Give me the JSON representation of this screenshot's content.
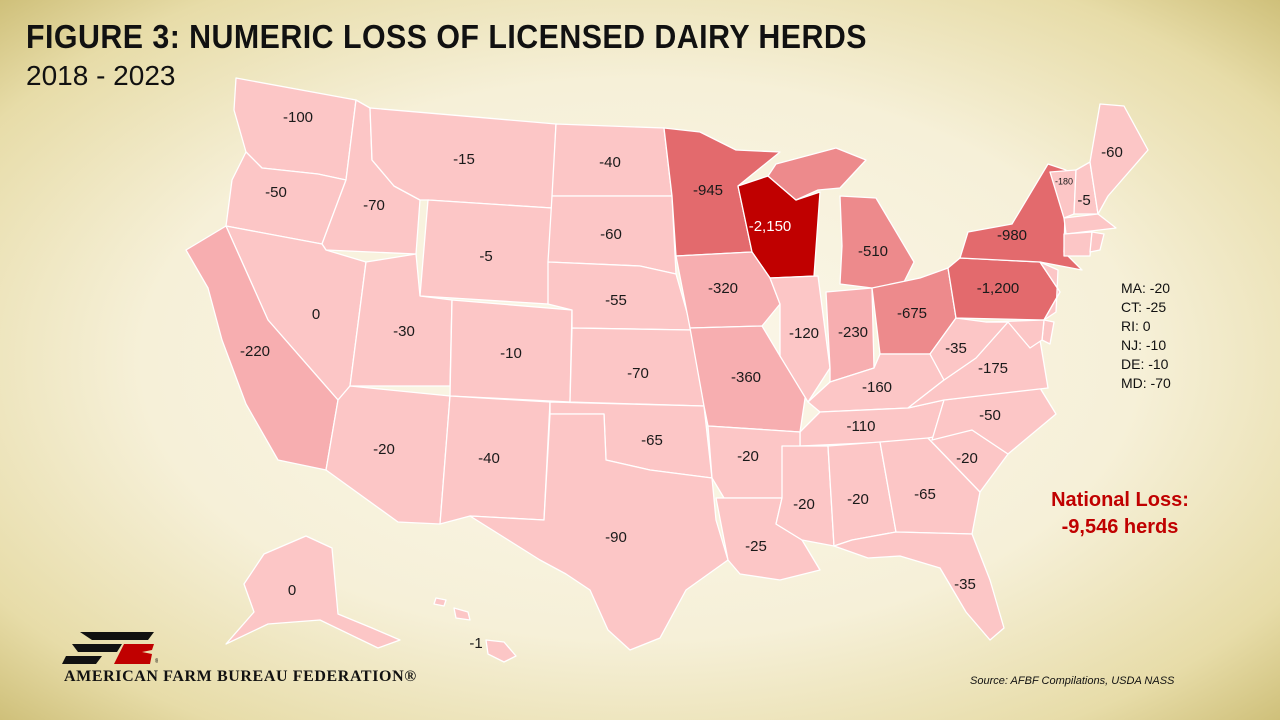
{
  "title": "FIGURE 3: NUMERIC LOSS OF LICENSED DAIRY HERDS",
  "subtitle": "2018 - 2023",
  "colors": {
    "lightest": "#fcc6c6",
    "light": "#f7aeb0",
    "medium": "#ed8a8c",
    "strong": "#e36a6d",
    "darkest": "#c00000",
    "border": "#ffffff",
    "national_text": "#c00000"
  },
  "states": [
    {
      "state": "WA",
      "label": "-100",
      "value": -100
    },
    {
      "state": "OR",
      "label": "-50",
      "value": -50
    },
    {
      "state": "ID",
      "label": "-70",
      "value": -70
    },
    {
      "state": "MT",
      "label": "-15",
      "value": -15
    },
    {
      "state": "ND",
      "label": "-40",
      "value": -40
    },
    {
      "state": "WY",
      "label": "-5",
      "value": -5
    },
    {
      "state": "SD",
      "label": "-60",
      "value": -60
    },
    {
      "state": "NE",
      "label": "-55",
      "value": -55
    },
    {
      "state": "NV",
      "label": "0",
      "value": 0
    },
    {
      "state": "CA",
      "label": "-220",
      "value": -220
    },
    {
      "state": "UT",
      "label": "-30",
      "value": -30
    },
    {
      "state": "CO",
      "label": "-10",
      "value": -10
    },
    {
      "state": "KS",
      "label": "-70",
      "value": -70
    },
    {
      "state": "AZ",
      "label": "-20",
      "value": -20
    },
    {
      "state": "NM",
      "label": "-40",
      "value": -40
    },
    {
      "state": "OK",
      "label": "-65",
      "value": -65
    },
    {
      "state": "TX",
      "label": "-90",
      "value": -90
    },
    {
      "state": "MN",
      "label": "-945",
      "value": -945
    },
    {
      "state": "WI",
      "label": "-2,150",
      "value": -2150
    },
    {
      "state": "IA",
      "label": "-320",
      "value": -320
    },
    {
      "state": "MO",
      "label": "-360",
      "value": -360
    },
    {
      "state": "AR",
      "label": "-20",
      "value": -20
    },
    {
      "state": "LA",
      "label": "-25",
      "value": -25
    },
    {
      "state": "IL",
      "label": "-120",
      "value": -120
    },
    {
      "state": "IN",
      "label": "-230",
      "value": -230
    },
    {
      "state": "MI",
      "label": "-510",
      "value": -510
    },
    {
      "state": "OH",
      "label": "-675",
      "value": -675
    },
    {
      "state": "KY",
      "label": "-160",
      "value": -160
    },
    {
      "state": "TN",
      "label": "-110",
      "value": -110
    },
    {
      "state": "MS",
      "label": "-20",
      "value": -20
    },
    {
      "state": "AL",
      "label": "-20",
      "value": -20
    },
    {
      "state": "GA",
      "label": "-65",
      "value": -65
    },
    {
      "state": "FL",
      "label": "-35",
      "value": -35
    },
    {
      "state": "SC",
      "label": "-20",
      "value": -20
    },
    {
      "state": "NC",
      "label": "-50",
      "value": -50
    },
    {
      "state": "VA",
      "label": "-175",
      "value": -175
    },
    {
      "state": "WV",
      "label": "-35",
      "value": -35
    },
    {
      "state": "PA",
      "label": "-1,200",
      "value": -1200
    },
    {
      "state": "NY",
      "label": "-980",
      "value": -980
    },
    {
      "state": "VT",
      "label": "-180",
      "value": -180
    },
    {
      "state": "NH",
      "label": "-5",
      "value": -5
    },
    {
      "state": "ME",
      "label": "-60",
      "value": -60
    },
    {
      "state": "AK",
      "label": "0",
      "value": 0
    },
    {
      "state": "HI",
      "label": "-1",
      "value": -1
    }
  ],
  "small_states": [
    {
      "abbr": "MA",
      "text": "MA: -20"
    },
    {
      "abbr": "CT",
      "text": "CT: -25"
    },
    {
      "abbr": "RI",
      "text": "RI:  0"
    },
    {
      "abbr": "NJ",
      "text": "NJ: -10"
    },
    {
      "abbr": "DE",
      "text": "DE: -10"
    },
    {
      "abbr": "MD",
      "text": "MD: -70"
    }
  ],
  "national_loss": {
    "line1": "National Loss:",
    "line2": "-9,546 herds"
  },
  "org_name": "AMERICAN FARM BUREAU FEDERATION®",
  "logo_text": "FB",
  "source": "Source: AFBF Compilations, USDA NASS"
}
